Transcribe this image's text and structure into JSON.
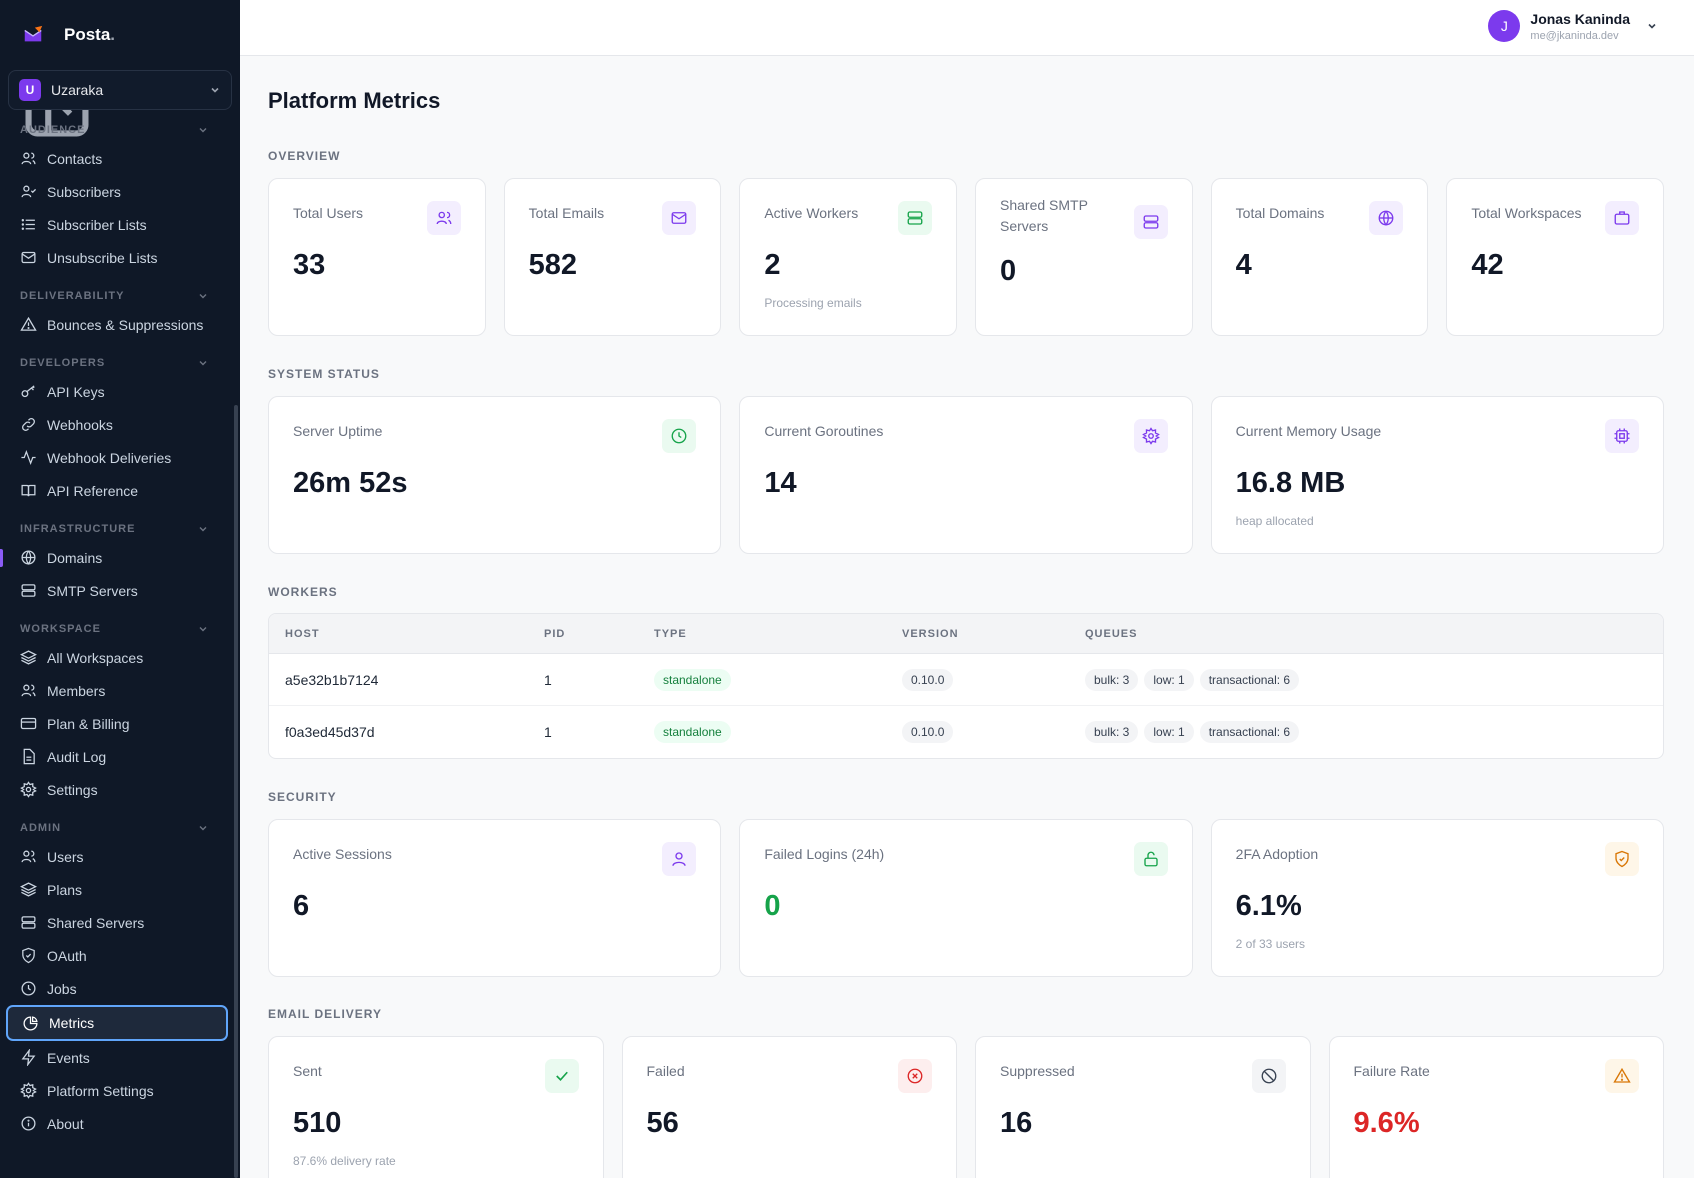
{
  "brand": {
    "name": "Posta",
    "dot": "."
  },
  "workspace": {
    "initial": "U",
    "name": "Uzaraka"
  },
  "user": {
    "initial": "J",
    "name": "Jonas Kaninda",
    "email": "me@jkaninda.dev"
  },
  "sidebar": {
    "audience": {
      "title": "AUDIENCE",
      "items": [
        {
          "label": "Contacts",
          "icon": "users-icon"
        },
        {
          "label": "Subscribers",
          "icon": "user-check-icon"
        },
        {
          "label": "Subscriber Lists",
          "icon": "list-icon"
        },
        {
          "label": "Unsubscribe Lists",
          "icon": "mail-icon"
        }
      ]
    },
    "deliverability": {
      "title": "DELIVERABILITY",
      "items": [
        {
          "label": "Bounces & Suppressions",
          "icon": "alert-triangle-icon"
        }
      ]
    },
    "developers": {
      "title": "DEVELOPERS",
      "items": [
        {
          "label": "API Keys",
          "icon": "key-icon"
        },
        {
          "label": "Webhooks",
          "icon": "link-icon"
        },
        {
          "label": "Webhook Deliveries",
          "icon": "activity-icon"
        },
        {
          "label": "API Reference",
          "icon": "book-icon"
        }
      ]
    },
    "infrastructure": {
      "title": "INFRASTRUCTURE",
      "items": [
        {
          "label": "Domains",
          "icon": "globe-icon"
        },
        {
          "label": "SMTP Servers",
          "icon": "server-icon"
        }
      ]
    },
    "workspace": {
      "title": "WORKSPACE",
      "items": [
        {
          "label": "All Workspaces",
          "icon": "layers-icon"
        },
        {
          "label": "Members",
          "icon": "users-icon"
        },
        {
          "label": "Plan & Billing",
          "icon": "credit-card-icon"
        },
        {
          "label": "Audit Log",
          "icon": "file-text-icon"
        },
        {
          "label": "Settings",
          "icon": "gear-icon"
        }
      ]
    },
    "admin": {
      "title": "ADMIN",
      "items": [
        {
          "label": "Users",
          "icon": "users-icon"
        },
        {
          "label": "Plans",
          "icon": "layers-icon"
        },
        {
          "label": "Shared Servers",
          "icon": "server-icon"
        },
        {
          "label": "OAuth",
          "icon": "shield-icon"
        },
        {
          "label": "Jobs",
          "icon": "clock-icon"
        },
        {
          "label": "Metrics",
          "icon": "pie-chart-icon"
        },
        {
          "label": "Events",
          "icon": "zap-icon"
        },
        {
          "label": "Platform Settings",
          "icon": "gear-icon"
        },
        {
          "label": "About",
          "icon": "info-icon"
        }
      ]
    }
  },
  "page": {
    "title": "Platform Metrics"
  },
  "overview": {
    "title": "OVERVIEW",
    "cards": [
      {
        "label": "Total Users",
        "value": "33",
        "sub": "",
        "icon": "users-icon",
        "color": "#7c3aed"
      },
      {
        "label": "Total Emails",
        "value": "582",
        "sub": "",
        "icon": "mail-icon",
        "color": "#7c3aed"
      },
      {
        "label": "Active Workers",
        "value": "2",
        "sub": "Processing emails",
        "icon": "server-icon",
        "color": "#16a34a"
      },
      {
        "label": "Shared SMTP Servers",
        "value": "0",
        "sub": "",
        "icon": "server-icon",
        "color": "#7c3aed"
      },
      {
        "label": "Total Domains",
        "value": "4",
        "sub": "",
        "icon": "globe-icon",
        "color": "#7c3aed"
      },
      {
        "label": "Total Workspaces",
        "value": "42",
        "sub": "",
        "icon": "briefcase-icon",
        "color": "#7c3aed"
      }
    ]
  },
  "system": {
    "title": "SYSTEM STATUS",
    "cards": [
      {
        "label": "Server Uptime",
        "value": "26m 52s",
        "sub": "",
        "icon": "clock-icon"
      },
      {
        "label": "Current Goroutines",
        "value": "14",
        "sub": "",
        "icon": "gear-icon"
      },
      {
        "label": "Current Memory Usage",
        "value": "16.8 MB",
        "sub": "heap allocated",
        "icon": "cpu-icon"
      }
    ]
  },
  "workers": {
    "title": "WORKERS",
    "columns": [
      "HOST",
      "PID",
      "TYPE",
      "VERSION",
      "QUEUES"
    ],
    "rows": [
      {
        "host": "a5e32b1b7124",
        "pid": "1",
        "type": "standalone",
        "version": "0.10.0",
        "queues": [
          "bulk: 3",
          "low: 1",
          "transactional: 6"
        ]
      },
      {
        "host": "f0a3ed45d37d",
        "pid": "1",
        "type": "standalone",
        "version": "0.10.0",
        "queues": [
          "bulk: 3",
          "low: 1",
          "transactional: 6"
        ]
      }
    ]
  },
  "security": {
    "title": "SECURITY",
    "cards": [
      {
        "label": "Active Sessions",
        "value": "6",
        "sub": "",
        "icon": "user-icon"
      },
      {
        "label": "Failed Logins (24h)",
        "value": "0",
        "sub": "",
        "icon": "unlock-icon"
      },
      {
        "label": "2FA Adoption",
        "value": "6.1%",
        "sub": "2 of 33 users",
        "icon": "shield-check-icon"
      }
    ]
  },
  "email_delivery": {
    "title": "EMAIL DELIVERY",
    "cards": [
      {
        "label": "Sent",
        "value": "510",
        "sub": "87.6% delivery rate",
        "icon": "check-icon"
      },
      {
        "label": "Failed",
        "value": "56",
        "sub": "",
        "icon": "x-circle-icon"
      },
      {
        "label": "Suppressed",
        "value": "16",
        "sub": "",
        "icon": "ban-icon"
      },
      {
        "label": "Failure Rate",
        "value": "9.6%",
        "sub": "",
        "icon": "alert-triangle-icon"
      }
    ]
  },
  "colors": {
    "accent": "#7c3aed",
    "success": "#16a34a",
    "danger": "#dc2626",
    "warning": "#d97706",
    "sidebar_bg": "#0f1827"
  }
}
